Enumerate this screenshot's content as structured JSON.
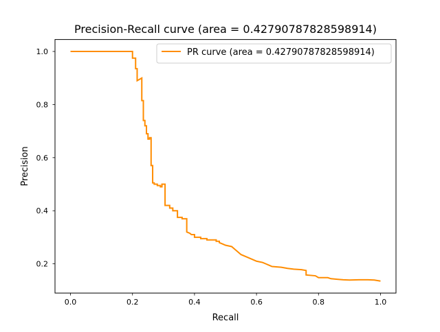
{
  "chart_data": {
    "type": "line",
    "title": "Precision-Recall curve (area = 0.42790787828598914)",
    "xlabel": "Recall",
    "ylabel": "Precision",
    "xlim": [
      -0.05,
      1.05
    ],
    "ylim": [
      0.09,
      1.045
    ],
    "grid": false,
    "legend_position": "top-right",
    "x_ticks": [
      {
        "value": 0.0,
        "label": "0.0"
      },
      {
        "value": 0.2,
        "label": "0.2"
      },
      {
        "value": 0.4,
        "label": "0.4"
      },
      {
        "value": 0.6,
        "label": "0.6"
      },
      {
        "value": 0.8,
        "label": "0.8"
      },
      {
        "value": 1.0,
        "label": "1.0"
      }
    ],
    "y_ticks": [
      {
        "value": 0.2,
        "label": "0.2"
      },
      {
        "value": 0.4,
        "label": "0.4"
      },
      {
        "value": 0.6,
        "label": "0.6"
      },
      {
        "value": 0.8,
        "label": "0.8"
      },
      {
        "value": 1.0,
        "label": "1.0"
      }
    ],
    "series": [
      {
        "name": "PR curve (area = 0.42790787828598914)",
        "color": "#ff8c00",
        "points": [
          [
            0.0,
            1.0
          ],
          [
            0.2,
            1.0
          ],
          [
            0.2,
            0.975
          ],
          [
            0.21,
            0.975
          ],
          [
            0.21,
            0.935
          ],
          [
            0.215,
            0.935
          ],
          [
            0.215,
            0.89
          ],
          [
            0.23,
            0.9
          ],
          [
            0.23,
            0.815
          ],
          [
            0.235,
            0.815
          ],
          [
            0.235,
            0.74
          ],
          [
            0.24,
            0.74
          ],
          [
            0.24,
            0.72
          ],
          [
            0.245,
            0.72
          ],
          [
            0.245,
            0.69
          ],
          [
            0.25,
            0.69
          ],
          [
            0.25,
            0.67
          ],
          [
            0.255,
            0.67
          ],
          [
            0.255,
            0.675
          ],
          [
            0.26,
            0.675
          ],
          [
            0.26,
            0.57
          ],
          [
            0.265,
            0.57
          ],
          [
            0.265,
            0.505
          ],
          [
            0.27,
            0.505
          ],
          [
            0.27,
            0.5
          ],
          [
            0.28,
            0.5
          ],
          [
            0.28,
            0.495
          ],
          [
            0.29,
            0.495
          ],
          [
            0.29,
            0.49
          ],
          [
            0.295,
            0.49
          ],
          [
            0.295,
            0.5
          ],
          [
            0.305,
            0.5
          ],
          [
            0.305,
            0.42
          ],
          [
            0.32,
            0.42
          ],
          [
            0.32,
            0.41
          ],
          [
            0.33,
            0.41
          ],
          [
            0.33,
            0.4
          ],
          [
            0.345,
            0.4
          ],
          [
            0.345,
            0.375
          ],
          [
            0.36,
            0.375
          ],
          [
            0.36,
            0.37
          ],
          [
            0.375,
            0.37
          ],
          [
            0.375,
            0.32
          ],
          [
            0.385,
            0.315
          ],
          [
            0.39,
            0.31
          ],
          [
            0.4,
            0.31
          ],
          [
            0.4,
            0.3
          ],
          [
            0.42,
            0.3
          ],
          [
            0.42,
            0.295
          ],
          [
            0.44,
            0.295
          ],
          [
            0.44,
            0.29
          ],
          [
            0.47,
            0.29
          ],
          [
            0.47,
            0.285
          ],
          [
            0.48,
            0.285
          ],
          [
            0.48,
            0.28
          ],
          [
            0.49,
            0.275
          ],
          [
            0.5,
            0.27
          ],
          [
            0.52,
            0.265
          ],
          [
            0.53,
            0.255
          ],
          [
            0.54,
            0.245
          ],
          [
            0.55,
            0.235
          ],
          [
            0.57,
            0.225
          ],
          [
            0.59,
            0.215
          ],
          [
            0.6,
            0.21
          ],
          [
            0.62,
            0.205
          ],
          [
            0.63,
            0.2
          ],
          [
            0.64,
            0.195
          ],
          [
            0.65,
            0.19
          ],
          [
            0.68,
            0.187
          ],
          [
            0.7,
            0.183
          ],
          [
            0.72,
            0.18
          ],
          [
            0.745,
            0.178
          ],
          [
            0.76,
            0.175
          ],
          [
            0.76,
            0.158
          ],
          [
            0.79,
            0.155
          ],
          [
            0.8,
            0.148
          ],
          [
            0.83,
            0.148
          ],
          [
            0.84,
            0.144
          ],
          [
            0.86,
            0.142
          ],
          [
            0.88,
            0.14
          ],
          [
            0.9,
            0.139
          ],
          [
            0.93,
            0.14
          ],
          [
            0.96,
            0.14
          ],
          [
            0.98,
            0.139
          ],
          [
            1.0,
            0.135
          ]
        ]
      }
    ]
  }
}
